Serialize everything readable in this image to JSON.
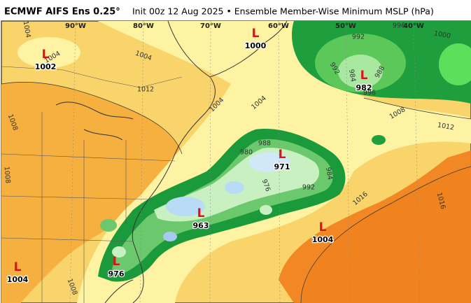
{
  "header": {
    "title": "ECMWF AIFS Ens 0.25°",
    "subtitle": "Init 00z 12 Aug 2025 • Ensemble Member-Wise Minimum MSLP (hPa)"
  },
  "map": {
    "longitude_labels": [
      "90°W",
      "80°W",
      "70°W",
      "60°W",
      "50°W",
      "40°W"
    ],
    "low_symbol": "L",
    "lows": [
      1002,
      1000,
      982,
      971,
      963,
      976,
      1004,
      1004
    ],
    "contour_labels": [
      1004,
      1004,
      1004,
      1012,
      1008,
      1008,
      1004,
      1004,
      1008,
      1012,
      1016,
      1016,
      992,
      992,
      984,
      988,
      996,
      1000,
      996,
      988,
      980,
      976,
      984,
      992,
      1008
    ]
  }
}
